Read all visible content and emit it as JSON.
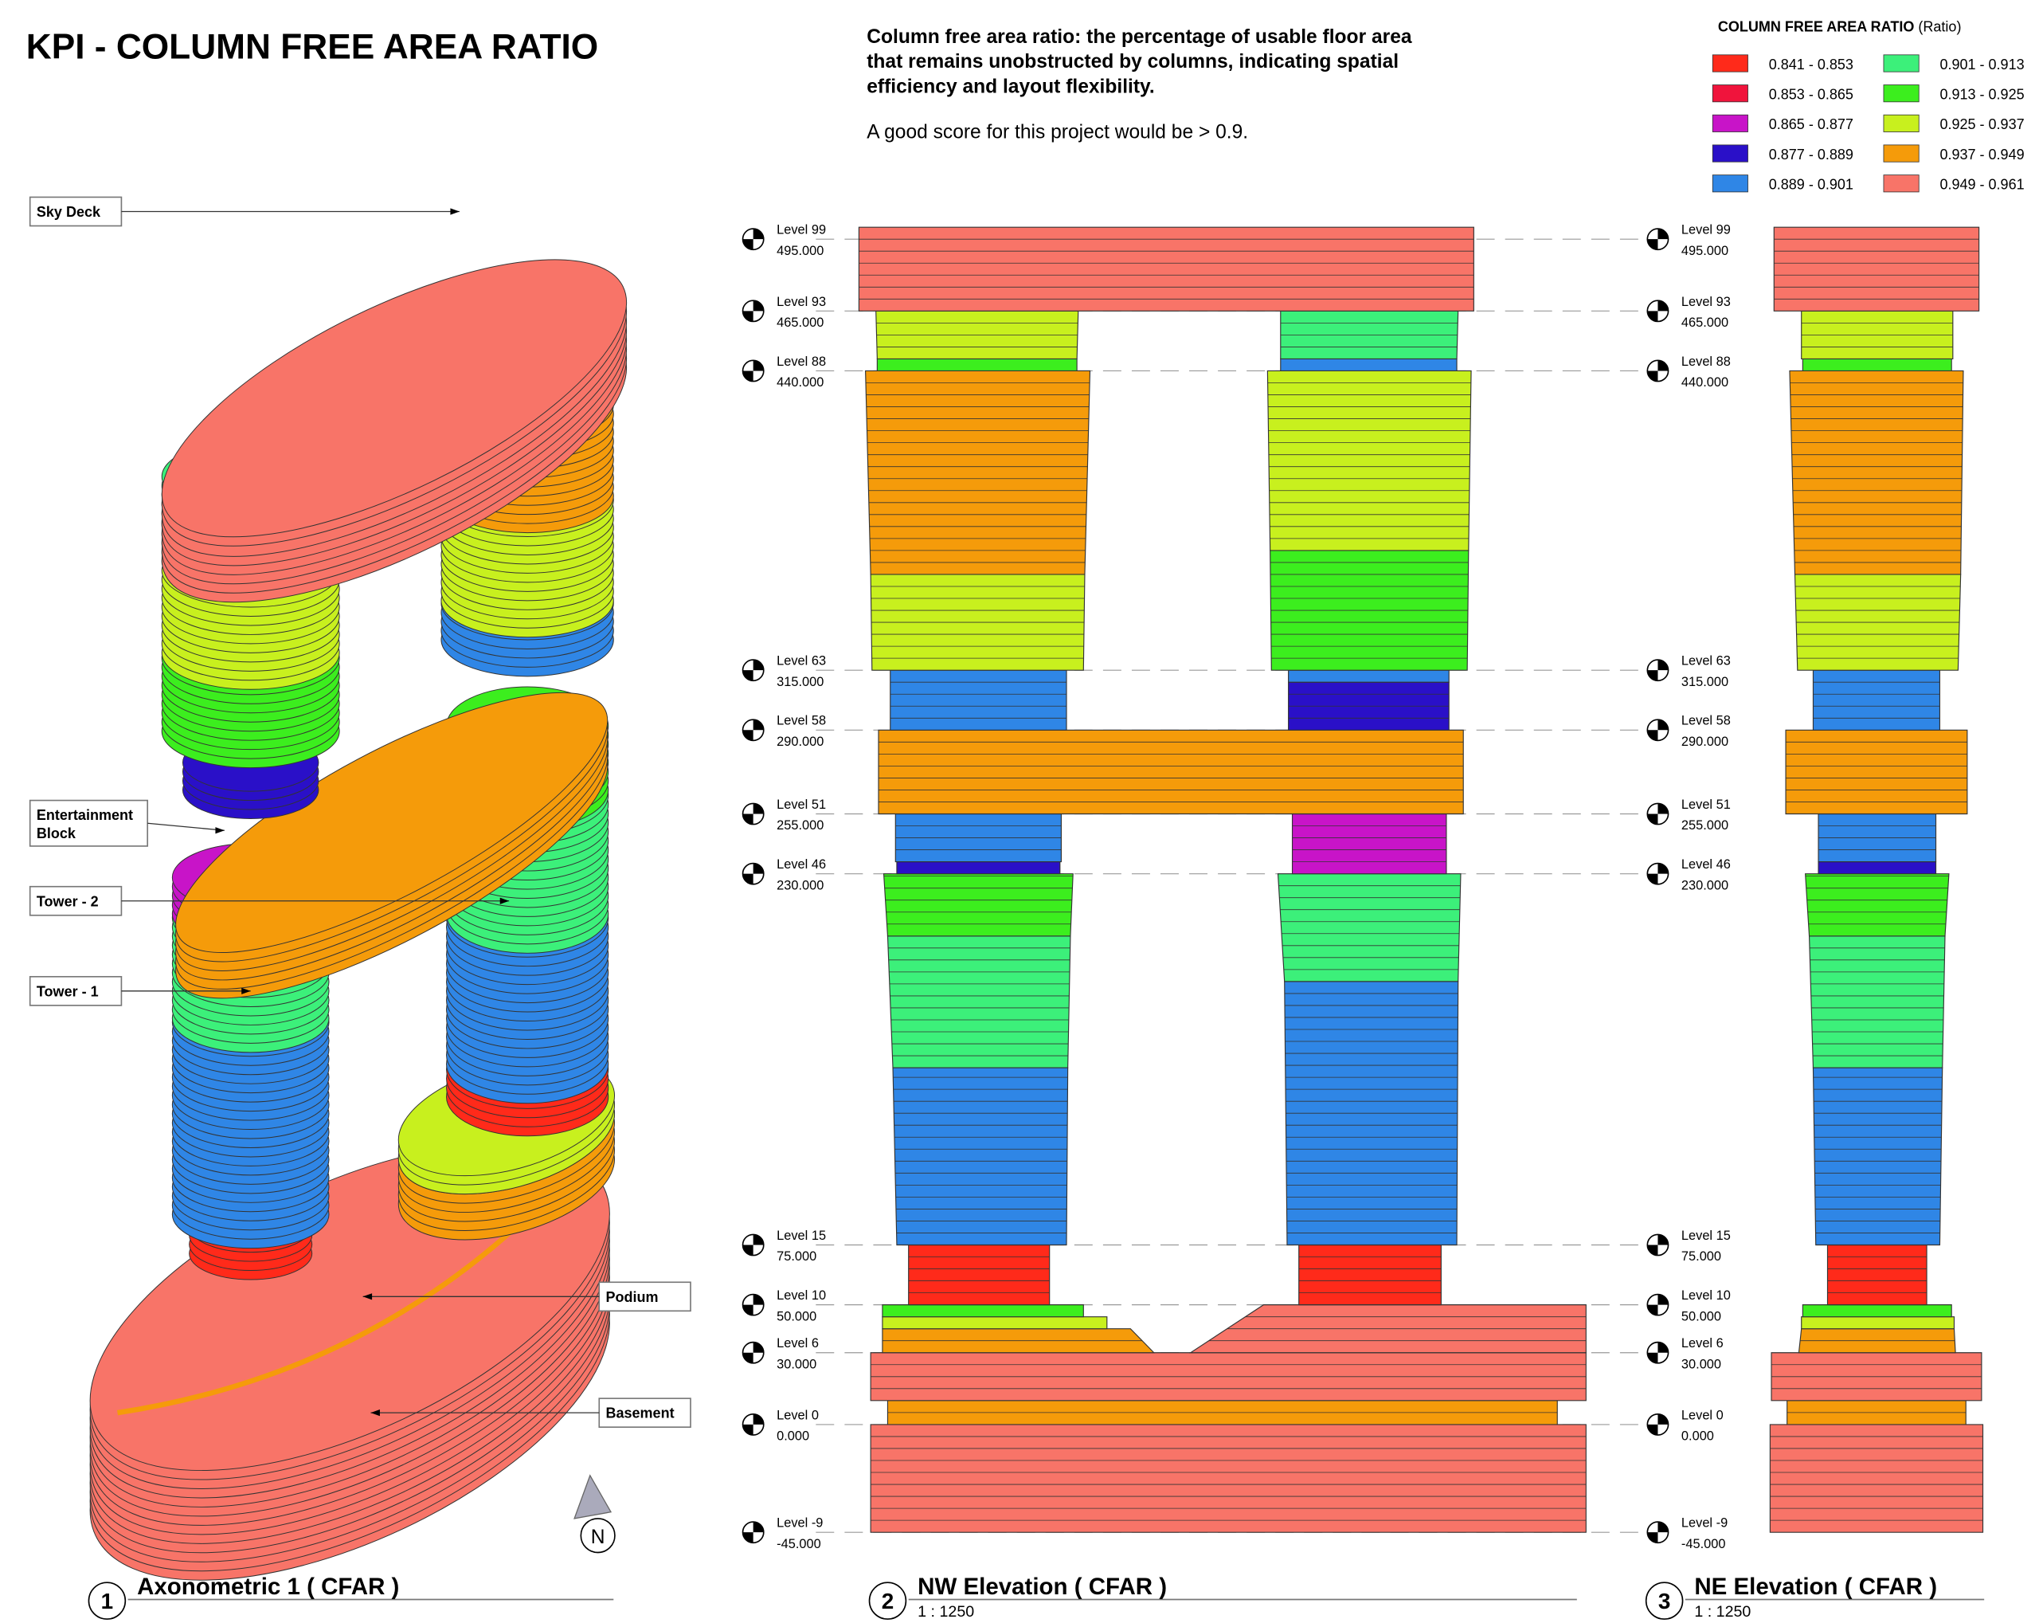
{
  "header": {
    "title": "KPI - COLUMN FREE AREA RATIO"
  },
  "description": {
    "lines": [
      "Column free area ratio: the percentage of usable floor area",
      "that remains unobstructed by columns, indicating spatial",
      "efficiency and layout flexibility."
    ],
    "note": "A good score for this project would be > 0.9."
  },
  "legend": {
    "title": "COLUMN FREE AREA RATIO",
    "unit": "(Ratio)",
    "items": [
      {
        "label": "0.841 - 0.853",
        "color": "#ff2a1a"
      },
      {
        "label": "0.853 - 0.865",
        "color": "#f0143c"
      },
      {
        "label": "0.865 - 0.877",
        "color": "#c814c8"
      },
      {
        "label": "0.877 - 0.889",
        "color": "#2a10c8"
      },
      {
        "label": "0.889 - 0.901",
        "color": "#2f86e6"
      },
      {
        "label": "0.901 - 0.913",
        "color": "#3cf07a"
      },
      {
        "label": "0.913 - 0.925",
        "color": "#3cee1e"
      },
      {
        "label": "0.925 - 0.937",
        "color": "#c8f01e"
      },
      {
        "label": "0.937 - 0.949",
        "color": "#f59b0a"
      },
      {
        "label": "0.949 - 0.961",
        "color": "#f87468"
      }
    ]
  },
  "callouts": [
    {
      "lines": [
        "Sky Deck"
      ]
    },
    {
      "lines": [
        "Entertainment",
        "Block"
      ]
    },
    {
      "lines": [
        "Tower - 2"
      ]
    },
    {
      "lines": [
        "Tower - 1"
      ]
    },
    {
      "lines": [
        "Podium"
      ]
    },
    {
      "lines": [
        "Basement"
      ]
    }
  ],
  "levels": [
    {
      "name": "Level 99",
      "elevation": {
        "value": 495,
        "label": "495.000"
      }
    },
    {
      "name": "Level 93",
      "elevation": {
        "value": 465,
        "label": "465.000"
      }
    },
    {
      "name": "Level 88",
      "elevation": {
        "value": 440,
        "label": "440.000"
      }
    },
    {
      "name": "Level 63",
      "elevation": {
        "value": 315,
        "label": "315.000"
      }
    },
    {
      "name": "Level 58",
      "elevation": {
        "value": 290,
        "label": "290.000"
      }
    },
    {
      "name": "Level 51",
      "elevation": {
        "value": 255,
        "label": "255.000"
      }
    },
    {
      "name": "Level 46",
      "elevation": {
        "value": 230,
        "label": "230.000"
      }
    },
    {
      "name": "Level 15",
      "elevation": {
        "value": 75,
        "label": "75.000"
      }
    },
    {
      "name": "Level 10",
      "elevation": {
        "value": 50,
        "label": "50.000"
      }
    },
    {
      "name": "Level 6",
      "elevation": {
        "value": 30,
        "label": "30.000"
      }
    },
    {
      "name": "Level 0",
      "elevation": {
        "value": 0,
        "label": "0.000"
      }
    },
    {
      "name": "Level -9",
      "elevation": {
        "value": -45,
        "label": "-45.000"
      }
    }
  ],
  "views": [
    {
      "number": "1",
      "title": "Axonometric 1 ( CFAR )"
    },
    {
      "number": "2",
      "title": "NW Elevation ( CFAR )",
      "scale": "1 : 1250"
    },
    {
      "number": "3",
      "title": "NE Elevation ( CFAR )",
      "scale": "1 : 1250"
    }
  ],
  "north": "N"
}
